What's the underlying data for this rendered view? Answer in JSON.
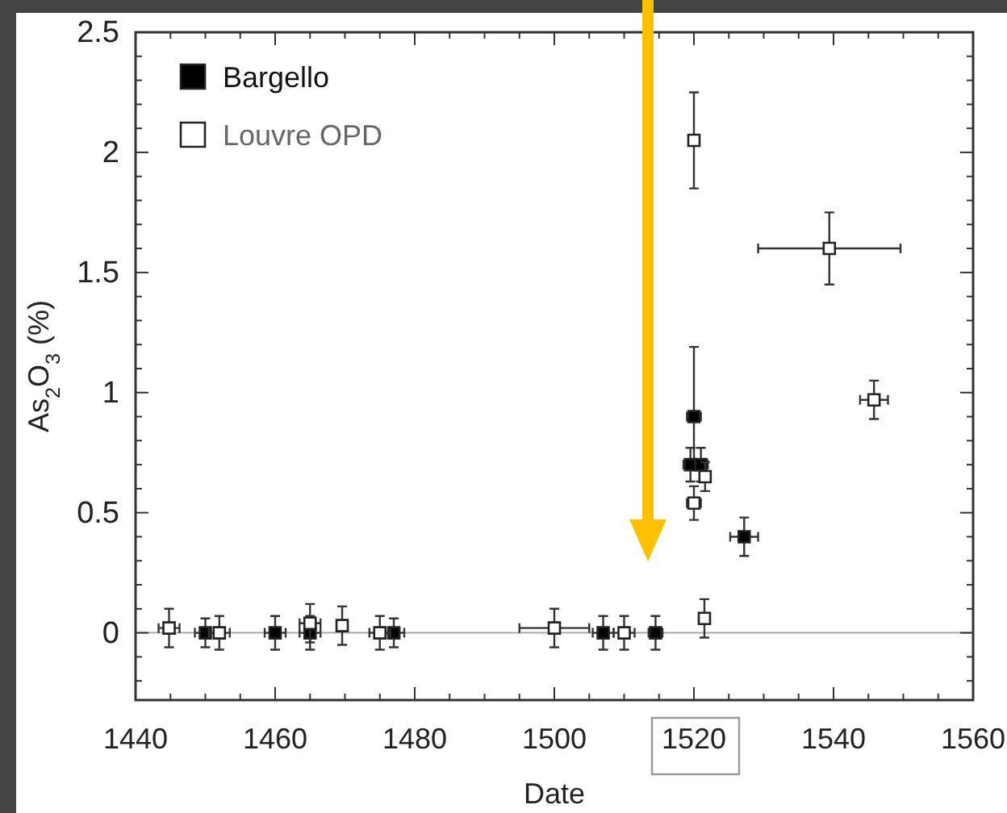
{
  "chart_data": {
    "type": "scatter",
    "xlabel": "Date",
    "ylabel": "As$_{2}$O$_{3}$ (%)",
    "xlim": [
      1440,
      1560
    ],
    "ylim": [
      -0.28,
      2.5
    ],
    "xticks": [
      1440,
      {
        "value": 1445,
        "label": null
      },
      1460,
      {
        "value": 1450,
        "label": null
      },
      {
        "value": 1455,
        "label": null
      },
      {
        "value": 1465,
        "label": null
      },
      {
        "value": 1470,
        "label": null
      },
      {
        "value": 1475,
        "label": null
      },
      1480,
      {
        "value": 1485,
        "label": null
      },
      {
        "value": 1490,
        "label": null
      },
      {
        "value": 1495,
        "label": null
      },
      1500,
      {
        "value": 1505,
        "label": null
      },
      {
        "value": 1510,
        "label": null
      },
      {
        "value": 1515,
        "label": null
      },
      1520,
      {
        "value": 1525,
        "label": null
      },
      {
        "value": 1530,
        "label": null
      },
      {
        "value": 1535,
        "label": null
      },
      1540,
      {
        "value": 1545,
        "label": null
      },
      {
        "value": 1550,
        "label": null
      },
      {
        "value": 1555,
        "label": null
      },
      1560
    ],
    "yticks": [
      {
        "value": -0.2,
        "label": null
      },
      {
        "value": -0.1,
        "label": null
      },
      0,
      {
        "value": 0.1,
        "label": null
      },
      {
        "value": 0.2,
        "label": null
      },
      {
        "value": 0.3,
        "label": null
      },
      {
        "value": 0.4,
        "label": null
      },
      0.5,
      {
        "value": 0.6,
        "label": null
      },
      {
        "value": 0.7,
        "label": null
      },
      {
        "value": 0.8,
        "label": null
      },
      {
        "value": 0.9,
        "label": null
      },
      1,
      {
        "value": 1.1,
        "label": null
      },
      {
        "value": 1.2,
        "label": null
      },
      {
        "value": 1.3,
        "label": null
      },
      {
        "value": 1.4,
        "label": null
      },
      1.5,
      {
        "value": 1.6,
        "label": null
      },
      {
        "value": 1.7,
        "label": null
      },
      {
        "value": 1.8,
        "label": null
      },
      {
        "value": 1.9,
        "label": null
      },
      2,
      {
        "value": 2.1,
        "label": null
      },
      {
        "value": 2.2,
        "label": null
      },
      {
        "value": 2.3,
        "label": null
      },
      {
        "value": 2.4,
        "label": null
      },
      2.5
    ],
    "grid": false,
    "legend": "top left",
    "marker": "square",
    "ref_lines": [
      {
        "axis": "y",
        "value": 0,
        "color": "#aaaaaa"
      }
    ],
    "series": [
      {
        "name": "Bargello",
        "color": "#000000",
        "x": [
          1450,
          1460,
          1465,
          1477,
          1507,
          1514.5,
          1520,
          1519.5,
          1521,
          1527.2
        ],
        "values": [
          0,
          0,
          0,
          0,
          0,
          0,
          0.9,
          0.7,
          0.7,
          0.4
        ],
        "errors": [
          0.06,
          0.07,
          0.07,
          0.06,
          0.07,
          0.07,
          [
            0.7,
            1.19
          ],
          0.07,
          0.07,
          0.08
        ],
        "xerrors": [
          1.5,
          1.5,
          1.5,
          1.5,
          1.5,
          1,
          1,
          1,
          1,
          2
        ]
      },
      {
        "name": "Louvre OPD",
        "color": "#ffffff",
        "x": [
          1444.8,
          1452,
          1465,
          1469.6,
          1475,
          1500,
          1510,
          1521.5,
          1520,
          1520,
          1521.6,
          1539.4,
          1545.8
        ],
        "values": [
          0.02,
          0,
          0.04,
          0.03,
          0,
          0.02,
          0,
          0.06,
          2.05,
          0.54,
          0.65,
          1.6,
          0.97
        ],
        "errors": [
          0.08,
          0.07,
          0.08,
          0.08,
          0.07,
          0.08,
          0.07,
          0.08,
          0.2,
          0.07,
          0.06,
          0.15,
          0.08
        ],
        "xerrors": [
          1.5,
          1.5,
          1.5,
          null,
          1.5,
          5,
          1.5,
          null,
          null,
          1,
          null,
          10.2,
          2
        ]
      }
    ]
  }
}
